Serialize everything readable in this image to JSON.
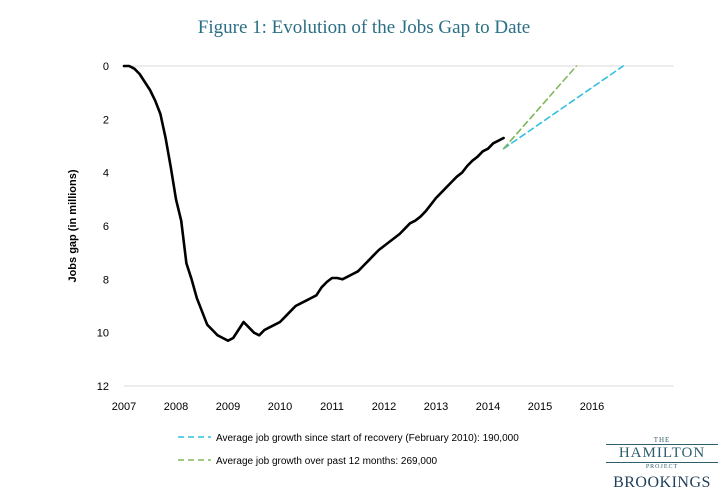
{
  "chart_data": {
    "type": "line",
    "title": "Figure 1: Evolution of the Jobs Gap to Date",
    "ylabel": "Jobs gap (in millions)",
    "xlabel": "",
    "xlim": [
      2007,
      2017.0
    ],
    "ylim": [
      0,
      12
    ],
    "y_inverted": true,
    "x_ticks": [
      "2007",
      "2008",
      "2009",
      "2010",
      "2011",
      "2012",
      "2013",
      "2014",
      "2015",
      "2016"
    ],
    "y_ticks": [
      "0",
      "2",
      "4",
      "6",
      "8",
      "10",
      "12"
    ],
    "grid": "y-baseline-only",
    "series": [
      {
        "name": "Jobs gap",
        "color": "#000000",
        "style": "solid",
        "x": [
          2007.0,
          2007.1,
          2007.2,
          2007.3,
          2007.4,
          2007.5,
          2007.6,
          2007.7,
          2007.8,
          2007.9,
          2008.0,
          2008.1,
          2008.2,
          2008.3,
          2008.4,
          2008.5,
          2008.6,
          2008.7,
          2008.8,
          2008.9,
          2009.0,
          2009.1,
          2009.2,
          2009.3,
          2009.4,
          2009.5,
          2009.6,
          2009.7,
          2009.8,
          2009.9,
          2010.0,
          2010.1,
          2010.2,
          2010.3,
          2010.4,
          2010.5,
          2010.6,
          2010.7,
          2010.8,
          2010.9,
          2011.0,
          2011.1,
          2011.2,
          2011.3,
          2011.4,
          2011.5,
          2011.6,
          2011.7,
          2011.8,
          2011.9,
          2012.0,
          2012.1,
          2012.2,
          2012.3,
          2012.4,
          2012.5,
          2012.6,
          2012.7,
          2012.8,
          2012.9,
          2013.0,
          2013.1,
          2013.2,
          2013.3,
          2013.4,
          2013.5,
          2013.6,
          2013.7,
          2013.8,
          2013.9,
          2014.0,
          2014.1,
          2014.2,
          2014.3
        ],
        "values": [
          0.0,
          0.0,
          0.1,
          0.3,
          0.6,
          0.9,
          1.3,
          1.8,
          2.7,
          3.8,
          5.0,
          5.8,
          7.4,
          8.0,
          8.7,
          9.2,
          9.7,
          9.9,
          10.1,
          10.2,
          10.3,
          10.2,
          9.9,
          9.6,
          9.8,
          10.0,
          10.1,
          9.9,
          9.8,
          9.7,
          9.6,
          9.4,
          9.2,
          9.0,
          8.9,
          8.8,
          8.7,
          8.6,
          8.3,
          8.1,
          7.95,
          7.95,
          8.0,
          7.9,
          7.8,
          7.7,
          7.5,
          7.3,
          7.1,
          6.9,
          6.75,
          6.6,
          6.45,
          6.3,
          6.1,
          5.9,
          5.8,
          5.65,
          5.45,
          5.2,
          4.95,
          4.75,
          4.55,
          4.35,
          4.15,
          4.0,
          3.75,
          3.55,
          3.4,
          3.2,
          3.1,
          2.9,
          2.8,
          2.7
        ]
      },
      {
        "name": "Average job growth since start of recovery (February 2010): 190,000",
        "color": "#33bfe0",
        "style": "dashed",
        "x": [
          2014.3,
          2016.6
        ],
        "values": [
          3.1,
          0.0
        ]
      },
      {
        "name": "Average job growth over past 12 months: 269,000",
        "color": "#7fb85a",
        "style": "dashed",
        "x": [
          2014.3,
          2015.7
        ],
        "values": [
          3.1,
          0.0
        ]
      }
    ],
    "legend_position": "bottom"
  },
  "logo": {
    "the": "THE",
    "hamilton": "HAMILTON",
    "project": "PROJECT",
    "brookings": "BROOKINGS"
  }
}
